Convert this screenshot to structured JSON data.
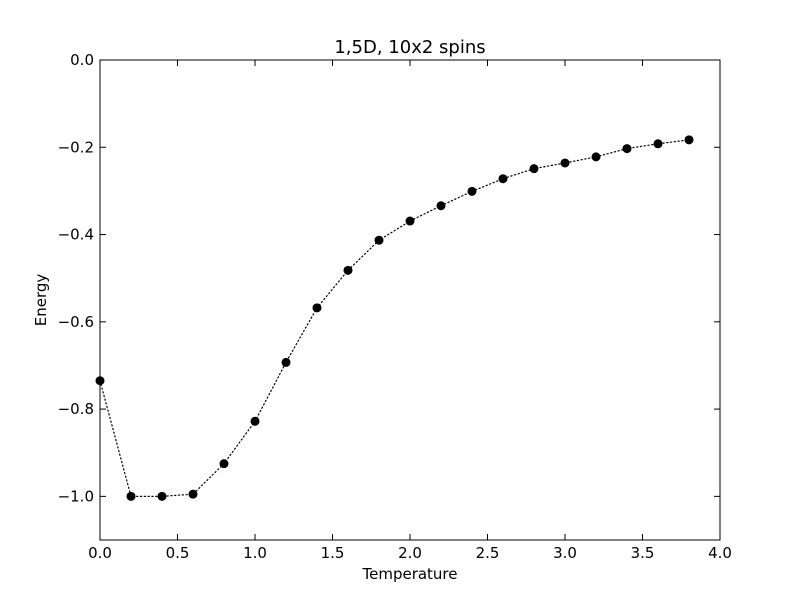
{
  "chart_data": {
    "type": "line",
    "title": "1,5D, 10x2 spins",
    "xlabel": "Temperature",
    "ylabel": "Energy",
    "xlim": [
      0.0,
      4.0
    ],
    "ylim": [
      -1.1,
      0.0
    ],
    "x_ticks": [
      "0.0",
      "0.5",
      "1.0",
      "1.5",
      "2.0",
      "2.5",
      "3.0",
      "3.5",
      "4.0"
    ],
    "y_ticks": [
      "0.0",
      "−0.2",
      "−0.4",
      "−0.6",
      "−0.8",
      "−1.0"
    ],
    "x_tick_values": [
      0.0,
      0.5,
      1.0,
      1.5,
      2.0,
      2.5,
      3.0,
      3.5,
      4.0
    ],
    "y_tick_values": [
      0.0,
      -0.2,
      -0.4,
      -0.6,
      -0.8,
      -1.0
    ],
    "grid": false,
    "legend": false,
    "line_style": "dotted",
    "marker": "circle",
    "series": [
      {
        "color": "#000000",
        "x": [
          0.0,
          0.2,
          0.4,
          0.6,
          0.8,
          1.0,
          1.2,
          1.4,
          1.6,
          1.8,
          2.0,
          2.2,
          2.4,
          2.6,
          2.8,
          3.0,
          3.2,
          3.4,
          3.6,
          3.8
        ],
        "y": [
          -0.735,
          -1.0,
          -1.0,
          -0.995,
          -0.925,
          -0.828,
          -0.693,
          -0.568,
          -0.482,
          -0.413,
          -0.369,
          -0.334,
          -0.301,
          -0.272,
          -0.249,
          -0.236,
          -0.222,
          -0.203,
          -0.192,
          -0.183
        ]
      }
    ]
  }
}
